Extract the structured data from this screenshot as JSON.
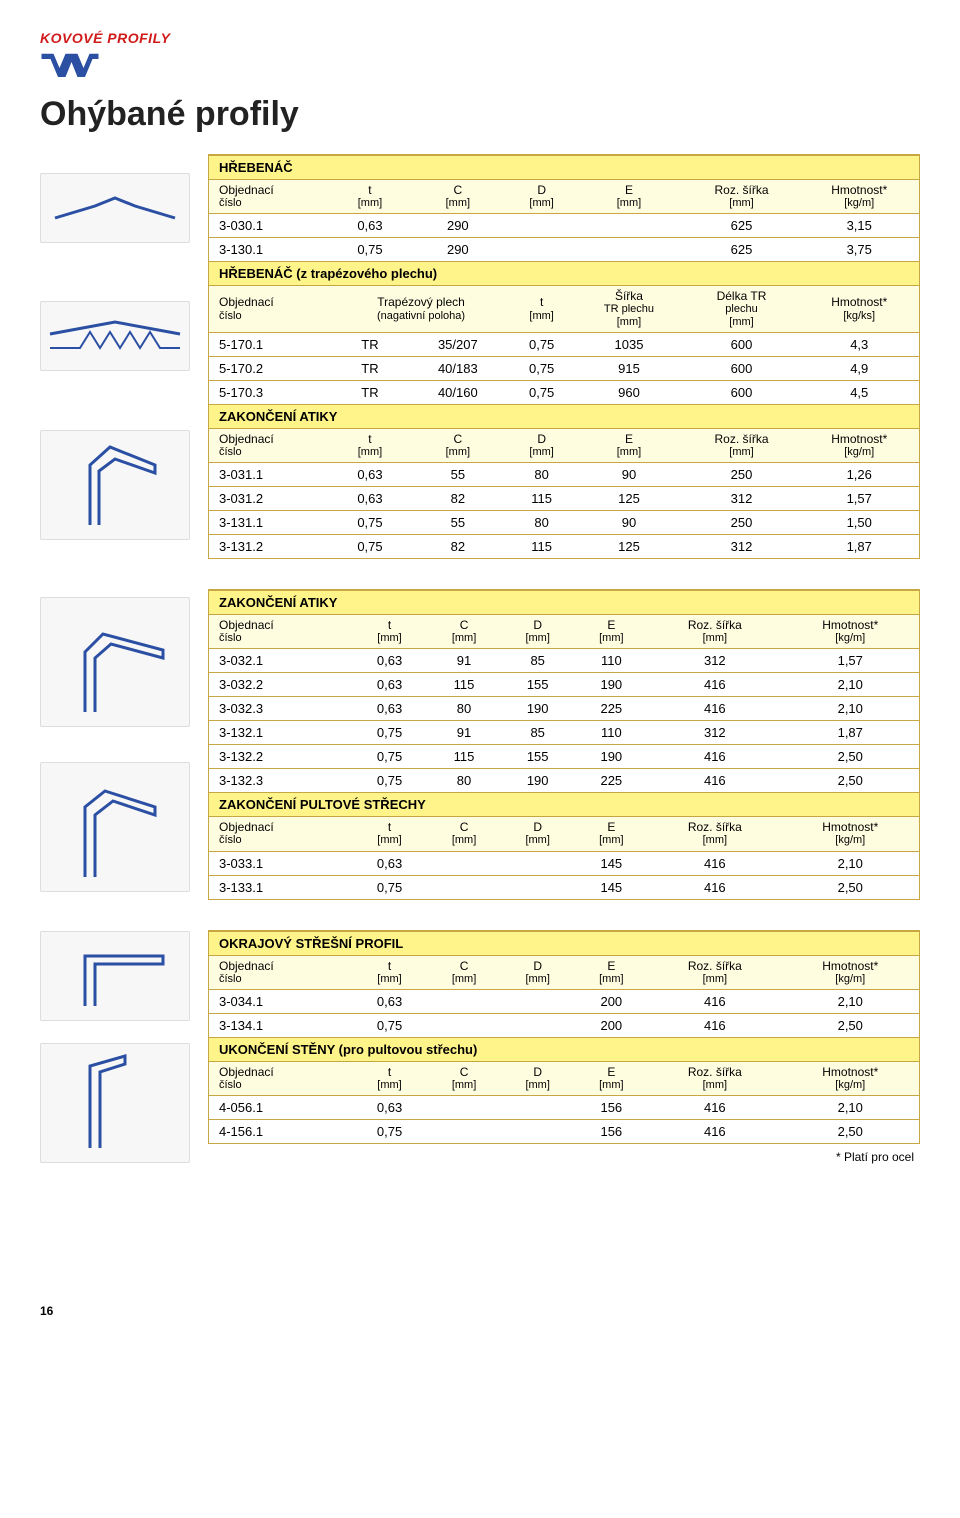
{
  "logo_text": "KOVOVÉ PROFILY",
  "title": "Ohýbané profily",
  "footnote": "* Platí pro ocel",
  "page_number": "16",
  "labels": {
    "objednaci": "Objednací",
    "cislo": "číslo",
    "t": "t",
    "mm": "[mm]",
    "C": "C",
    "D": "D",
    "E": "E",
    "roz": "Roz. šířka",
    "hm": "Hmotnost*",
    "kgm": "[kg/m]",
    "kgks": "[kg/ks]",
    "trap": "Trapézový plech",
    "neg": "(nagativní poloha)",
    "sirka": "Šířka",
    "trplech": "TR plechu",
    "delka": "Délka TR",
    "plechu": "plechu"
  },
  "sections": {
    "s1": "HŘEBENÁČ",
    "s2": "HŘEBENÁČ (z trapézového plechu)",
    "s3": "ZAKONČENÍ ATIKY",
    "s4": "ZAKONČENÍ ATIKY",
    "s5": "ZAKONČENÍ PULTOVÉ STŘECHY",
    "s6": "OKRAJOVÝ STŘEŠNÍ PROFIL",
    "s7": "UKONČENÍ STĚNY (pro pultovou střechu)"
  },
  "t1": [
    {
      "n": "3-030.1",
      "t": "0,63",
      "c": "290",
      "d": "",
      "e": "",
      "r": "625",
      "h": "3,15"
    },
    {
      "n": "3-130.1",
      "t": "0,75",
      "c": "290",
      "d": "",
      "e": "",
      "r": "625",
      "h": "3,75"
    }
  ],
  "t2": [
    {
      "n": "5-170.1",
      "p": "TR",
      "g": "35/207",
      "t": "0,75",
      "s": "1035",
      "d": "600",
      "h": "4,3"
    },
    {
      "n": "5-170.2",
      "p": "TR",
      "g": "40/183",
      "t": "0,75",
      "s": "915",
      "d": "600",
      "h": "4,9"
    },
    {
      "n": "5-170.3",
      "p": "TR",
      "g": "40/160",
      "t": "0,75",
      "s": "960",
      "d": "600",
      "h": "4,5"
    }
  ],
  "t3": [
    {
      "n": "3-031.1",
      "t": "0,63",
      "c": "55",
      "d": "80",
      "e": "90",
      "r": "250",
      "h": "1,26"
    },
    {
      "n": "3-031.2",
      "t": "0,63",
      "c": "82",
      "d": "115",
      "e": "125",
      "r": "312",
      "h": "1,57"
    },
    {
      "n": "3-131.1",
      "t": "0,75",
      "c": "55",
      "d": "80",
      "e": "90",
      "r": "250",
      "h": "1,50"
    },
    {
      "n": "3-131.2",
      "t": "0,75",
      "c": "82",
      "d": "115",
      "e": "125",
      "r": "312",
      "h": "1,87"
    }
  ],
  "t4": [
    {
      "n": "3-032.1",
      "t": "0,63",
      "c": "91",
      "d": "85",
      "e": "110",
      "r": "312",
      "h": "1,57"
    },
    {
      "n": "3-032.2",
      "t": "0,63",
      "c": "115",
      "d": "155",
      "e": "190",
      "r": "416",
      "h": "2,10"
    },
    {
      "n": "3-032.3",
      "t": "0,63",
      "c": "80",
      "d": "190",
      "e": "225",
      "r": "416",
      "h": "2,10"
    },
    {
      "n": "3-132.1",
      "t": "0,75",
      "c": "91",
      "d": "85",
      "e": "110",
      "r": "312",
      "h": "1,87"
    },
    {
      "n": "3-132.2",
      "t": "0,75",
      "c": "115",
      "d": "155",
      "e": "190",
      "r": "416",
      "h": "2,50"
    },
    {
      "n": "3-132.3",
      "t": "0,75",
      "c": "80",
      "d": "190",
      "e": "225",
      "r": "416",
      "h": "2,50"
    }
  ],
  "t5": [
    {
      "n": "3-033.1",
      "t": "0,63",
      "c": "",
      "d": "",
      "e": "145",
      "r": "416",
      "h": "2,10"
    },
    {
      "n": "3-133.1",
      "t": "0,75",
      "c": "",
      "d": "",
      "e": "145",
      "r": "416",
      "h": "2,50"
    }
  ],
  "t6": [
    {
      "n": "3-034.1",
      "t": "0,63",
      "c": "",
      "d": "",
      "e": "200",
      "r": "416",
      "h": "2,10"
    },
    {
      "n": "3-134.1",
      "t": "0,75",
      "c": "",
      "d": "",
      "e": "200",
      "r": "416",
      "h": "2,50"
    }
  ],
  "t7": [
    {
      "n": "4-056.1",
      "t": "0,63",
      "c": "",
      "d": "",
      "e": "156",
      "r": "416",
      "h": "2,10"
    },
    {
      "n": "4-156.1",
      "t": "0,75",
      "c": "",
      "d": "",
      "e": "156",
      "r": "416",
      "h": "2,50"
    }
  ]
}
